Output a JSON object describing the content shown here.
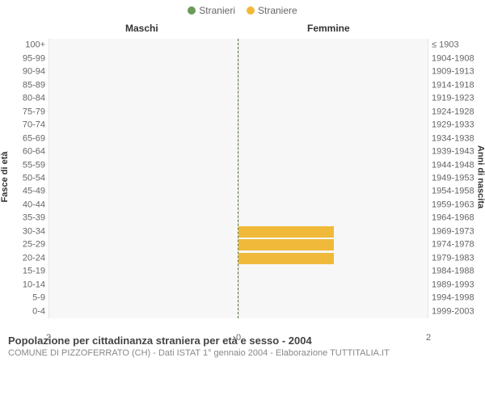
{
  "legend": {
    "items": [
      {
        "label": "Stranieri",
        "color": "#6b9a5b"
      },
      {
        "label": "Straniere",
        "color": "#f0b93a"
      }
    ]
  },
  "chart": {
    "type": "population-pyramid",
    "left_header": "Maschi",
    "right_header": "Femmine",
    "left_axis_title": "Fasce di età",
    "right_axis_title": "Anni di nascita",
    "background_color": "#f7f7f7",
    "grid_color": "#e5e5e5",
    "divider_color": "#5a7a3a",
    "x_max": 2,
    "x_ticks": [
      2,
      0,
      2
    ],
    "rows": [
      {
        "age": "100+",
        "birth": "≤ 1903",
        "male": 0,
        "female": 0
      },
      {
        "age": "95-99",
        "birth": "1904-1908",
        "male": 0,
        "female": 0
      },
      {
        "age": "90-94",
        "birth": "1909-1913",
        "male": 0,
        "female": 0
      },
      {
        "age": "85-89",
        "birth": "1914-1918",
        "male": 0,
        "female": 0
      },
      {
        "age": "80-84",
        "birth": "1919-1923",
        "male": 0,
        "female": 0
      },
      {
        "age": "75-79",
        "birth": "1924-1928",
        "male": 0,
        "female": 0
      },
      {
        "age": "70-74",
        "birth": "1929-1933",
        "male": 0,
        "female": 0
      },
      {
        "age": "65-69",
        "birth": "1934-1938",
        "male": 0,
        "female": 0
      },
      {
        "age": "60-64",
        "birth": "1939-1943",
        "male": 0,
        "female": 0
      },
      {
        "age": "55-59",
        "birth": "1944-1948",
        "male": 0,
        "female": 0
      },
      {
        "age": "50-54",
        "birth": "1949-1953",
        "male": 0,
        "female": 0
      },
      {
        "age": "45-49",
        "birth": "1954-1958",
        "male": 0,
        "female": 0
      },
      {
        "age": "40-44",
        "birth": "1959-1963",
        "male": 0,
        "female": 0
      },
      {
        "age": "35-39",
        "birth": "1964-1968",
        "male": 0,
        "female": 0
      },
      {
        "age": "30-34",
        "birth": "1969-1973",
        "male": 0,
        "female": 1
      },
      {
        "age": "25-29",
        "birth": "1974-1978",
        "male": 0,
        "female": 1
      },
      {
        "age": "20-24",
        "birth": "1979-1983",
        "male": 0,
        "female": 1
      },
      {
        "age": "15-19",
        "birth": "1984-1988",
        "male": 0,
        "female": 0
      },
      {
        "age": "10-14",
        "birth": "1989-1993",
        "male": 0,
        "female": 0
      },
      {
        "age": "5-9",
        "birth": "1994-1998",
        "male": 0,
        "female": 0
      },
      {
        "age": "0-4",
        "birth": "1999-2003",
        "male": 0,
        "female": 0
      }
    ],
    "male_color": "#6b9a5b",
    "female_color": "#f0b93a",
    "label_fontsize": 11,
    "header_fontsize": 12
  },
  "footer": {
    "title": "Popolazione per cittadinanza straniera per età e sesso - 2004",
    "subtitle": "COMUNE DI PIZZOFERRATO (CH) - Dati ISTAT 1° gennaio 2004 - Elaborazione TUTTITALIA.IT"
  }
}
